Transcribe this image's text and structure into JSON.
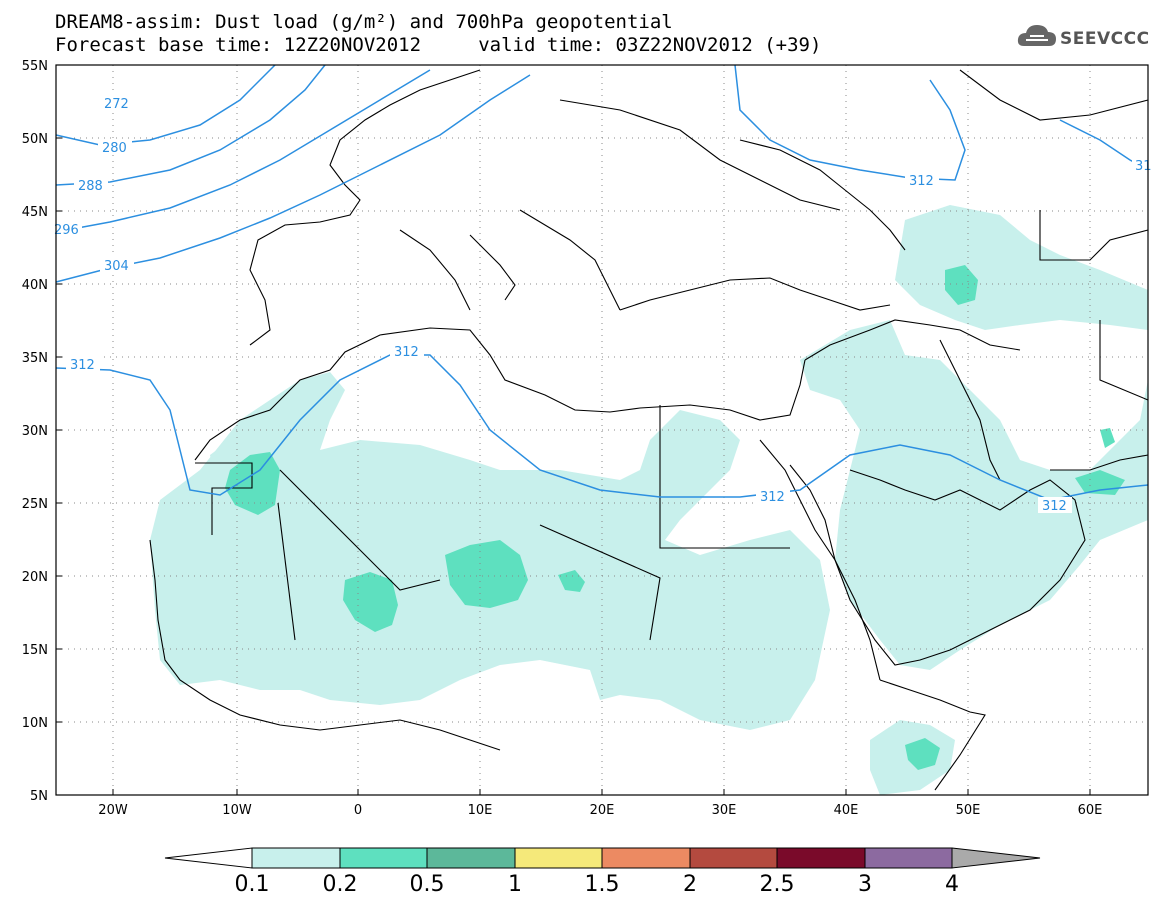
{
  "header": {
    "title_line_1": "DREAM8-assim: Dust load (g/m²) and 700hPa geopotential",
    "title_line_2": "Forecast base time: 12Z20NOV2012     valid time: 03Z22NOV2012 (+39)"
  },
  "logo": {
    "text": "SEEVCCC",
    "icon": "cloud-icon"
  },
  "map": {
    "lat_labels": [
      "55N",
      "50N",
      "45N",
      "40N",
      "35N",
      "30N",
      "25N",
      "20N",
      "15N",
      "10N",
      "5N"
    ],
    "lon_labels": [
      "20W",
      "10W",
      "0",
      "10E",
      "20E",
      "30E",
      "40E",
      "50E",
      "60E"
    ],
    "contour_labels": [
      "272",
      "280",
      "288",
      "296",
      "304",
      "312",
      "312",
      "312",
      "312",
      "312",
      "31"
    ],
    "shading_colors": {
      "light": "#c8f0ec",
      "medium": "#5ee0bf"
    },
    "contour_color": "#2c8fe0"
  },
  "colorbar": {
    "labels": [
      "0.1",
      "0.2",
      "0.5",
      "1",
      "1.5",
      "2",
      "2.5",
      "3",
      "4"
    ],
    "colors": [
      "#c8f0ec",
      "#5ee0bf",
      "#5cb89a",
      "#f5e97a",
      "#ec8a62",
      "#b44a3f",
      "#7a0a2a",
      "#8c6aa0"
    ],
    "under_color": "#ffffff",
    "over_color": "#aaaaaa"
  }
}
